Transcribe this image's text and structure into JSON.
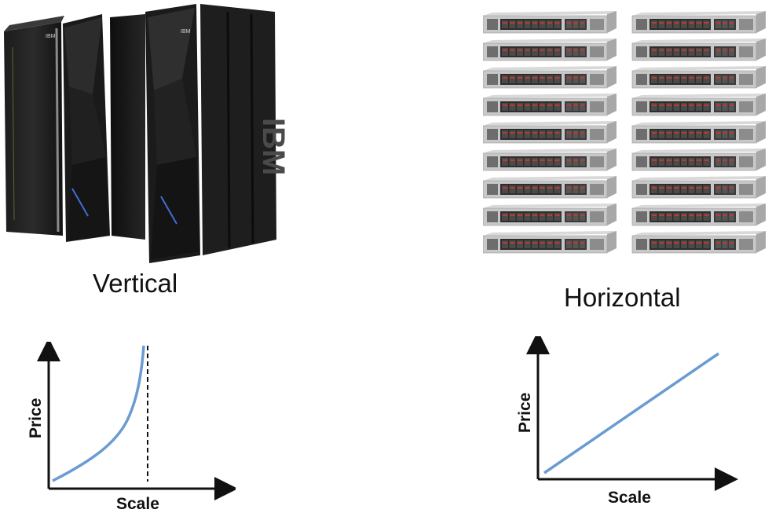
{
  "left": {
    "caption": "Vertical",
    "mainframe": {
      "brand_text": "IBM",
      "side_text": "IBM"
    },
    "graph": {
      "xlabel": "Scale",
      "ylabel": "Price",
      "curve": "exponential",
      "limit_line": "dashed",
      "line_color": "#6a9bd1"
    }
  },
  "right": {
    "caption": "Horizontal",
    "servers": {
      "columns": 2,
      "rows": 9
    },
    "graph": {
      "xlabel": "Scale",
      "ylabel": "Price",
      "curve": "linear",
      "line_color": "#6a9bd1"
    }
  }
}
